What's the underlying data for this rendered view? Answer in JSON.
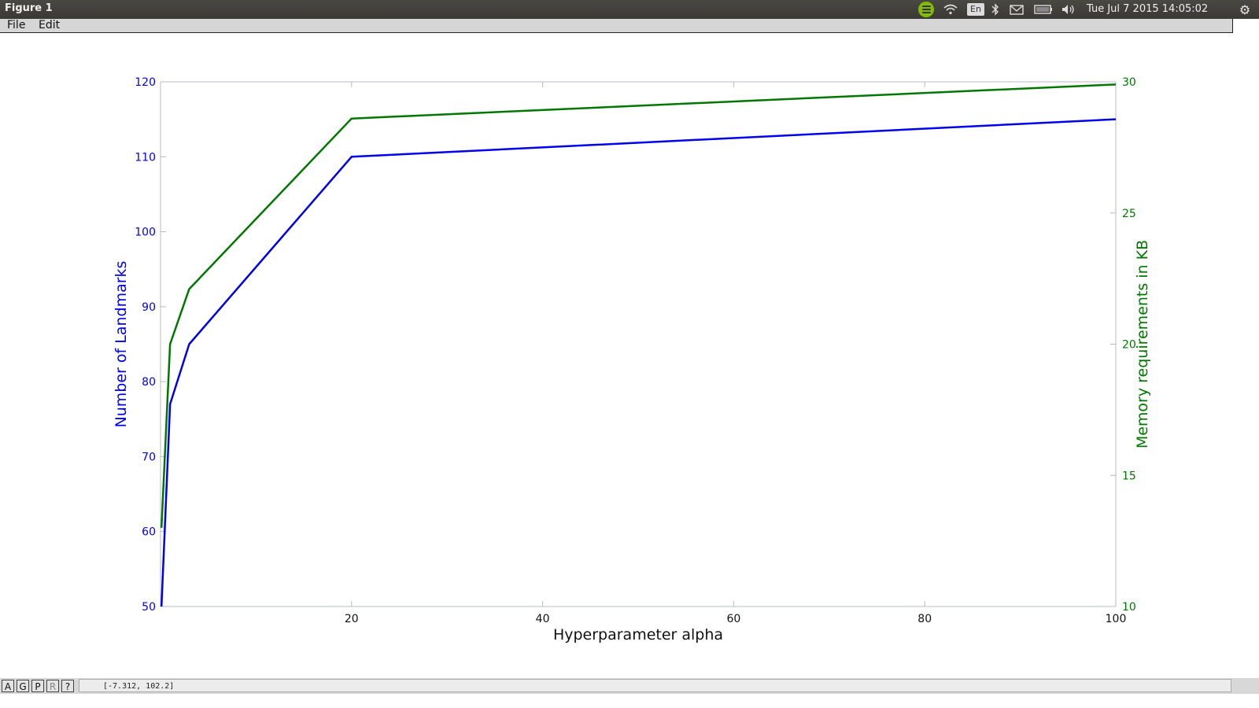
{
  "window": {
    "title": "Figure 1",
    "clock": "Tue Jul  7 2015 14:05:02",
    "tray_icons": [
      "spotify-icon",
      "wifi-icon",
      "keyboard-en-icon",
      "bluetooth-icon",
      "mail-icon",
      "battery-icon",
      "volume-icon",
      "gear-icon"
    ],
    "keyboard_label": "En"
  },
  "menu": {
    "file": "File",
    "edit": "Edit"
  },
  "statusbar": {
    "buttons": [
      "A",
      "G",
      "P",
      "R",
      "?"
    ],
    "coordinates": "[-7.312, 102.2]"
  },
  "colors": {
    "left_series": "#0000ee",
    "right_series": "#007700"
  },
  "chart_data": {
    "type": "line",
    "xlabel": "Hyperparameter alpha",
    "ylabel_left": "Number of Landmarks",
    "ylabel_right": "Memory requirements in KB",
    "xlim": [
      0,
      100
    ],
    "ylim_left": [
      50,
      120
    ],
    "ylim_right": [
      10,
      30
    ],
    "x_ticks": [
      "20",
      "40",
      "60",
      "80",
      "100"
    ],
    "y_ticks_left": [
      "50",
      "60",
      "70",
      "80",
      "90",
      "100",
      "110",
      "120"
    ],
    "y_ticks_right": [
      "10",
      "15",
      "20",
      "25",
      "30"
    ],
    "series": [
      {
        "axis": "left",
        "x": [
          0.1,
          1,
          3,
          20,
          100
        ],
        "y": [
          50,
          77,
          85,
          110,
          115
        ]
      },
      {
        "axis": "right",
        "x": [
          0.1,
          1,
          3,
          20,
          100
        ],
        "y": [
          13,
          20,
          22.1,
          28.6,
          29.9
        ]
      }
    ]
  }
}
